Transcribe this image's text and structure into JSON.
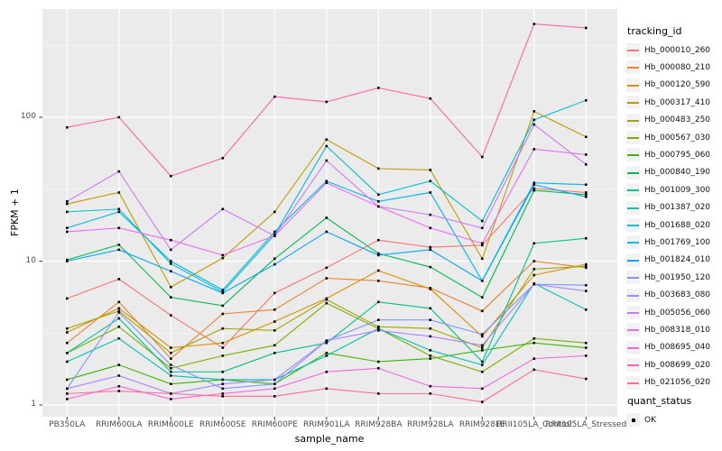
{
  "figure": {
    "background": "#FFFFFF",
    "panel_background": "#EBEBEB",
    "grid_color": "#FFFFFF",
    "point_color": "#000000"
  },
  "axes": {
    "x": {
      "title": "sample_name"
    },
    "y": {
      "title": "FPKM + 1",
      "tick_labels": [
        "1",
        "10",
        "100"
      ],
      "tick_values": [
        1,
        10,
        100
      ],
      "minor_tick_values": [
        3.1623,
        31.623,
        316.23
      ],
      "scale": "log10"
    }
  },
  "legend": {
    "tracking_title": "tracking_id",
    "quant_title": "quant_status",
    "quant_items": [
      {
        "label": "OK",
        "marker": "black-square"
      }
    ]
  },
  "chart_data": {
    "type": "line",
    "title": "",
    "xlabel": "sample_name",
    "ylabel": "FPKM + 1",
    "y_scale": "log10",
    "ylim": [
      0.83,
      565
    ],
    "grid": true,
    "legend_position": "right",
    "point_marker": "black-square",
    "x_categories": [
      "PB350LA",
      "RRIM600LA",
      "RRIM600LE",
      "RRIM600SE",
      "RRIM600PE",
      "RRIM901LA",
      "RRIM928BA",
      "RRIM928LA",
      "RRIM928LE",
      "RRII105LA_Control",
      "RRII105LA_Stressed"
    ],
    "series": [
      {
        "name": "Hb_000010_260",
        "color": "#F8766D",
        "values": [
          5.5,
          7.5,
          4.2,
          2.5,
          6.0,
          9.0,
          14.0,
          12.5,
          12.9,
          32,
          30
        ]
      },
      {
        "name": "Hb_000080_210",
        "color": "#EA8331",
        "values": [
          2.7,
          5.2,
          2.1,
          4.3,
          4.6,
          7.6,
          7.3,
          6.5,
          4.5,
          10,
          9.0
        ]
      },
      {
        "name": "Hb_000120_590",
        "color": "#D89000",
        "values": [
          3.2,
          4.7,
          2.5,
          2.7,
          3.8,
          5.5,
          8.6,
          6.4,
          3.0,
          8.0,
          9.5
        ]
      },
      {
        "name": "Hb_000317_410",
        "color": "#C09B00",
        "values": [
          25,
          30,
          6.6,
          10.5,
          22,
          70,
          44,
          43,
          10.4,
          110,
          73
        ]
      },
      {
        "name": "Hb_000483_250",
        "color": "#A3A500",
        "values": [
          3.4,
          4.5,
          2.3,
          3.4,
          3.3,
          5.4,
          3.5,
          3.4,
          2.5,
          8.8,
          9.2
        ]
      },
      {
        "name": "Hb_000567_030",
        "color": "#7CAE00",
        "values": [
          2.3,
          3.5,
          1.8,
          2.2,
          2.6,
          5.1,
          3.4,
          2.2,
          1.7,
          2.9,
          2.7
        ]
      },
      {
        "name": "Hb_000795_060",
        "color": "#39B600",
        "values": [
          1.5,
          1.9,
          1.4,
          1.5,
          1.4,
          2.3,
          2.0,
          2.1,
          2.4,
          2.7,
          2.5
        ]
      },
      {
        "name": "Hb_000840_190",
        "color": "#00BB4E",
        "values": [
          10.2,
          13,
          5.6,
          4.9,
          10.4,
          20,
          11.3,
          9.1,
          5.6,
          31,
          29
        ]
      },
      {
        "name": "Hb_001009_300",
        "color": "#00C08D",
        "values": [
          2.3,
          4.0,
          1.7,
          1.7,
          2.3,
          2.7,
          5.2,
          4.7,
          2.0,
          13.3,
          14.4
        ]
      },
      {
        "name": "Hb_001387_020",
        "color": "#00C0B4",
        "values": [
          2.0,
          2.9,
          1.6,
          1.5,
          1.5,
          2.2,
          3.4,
          2.4,
          1.9,
          7.0,
          4.6
        ]
      },
      {
        "name": "Hb_001688_020",
        "color": "#00BDD2",
        "values": [
          22,
          23,
          9.6,
          6.1,
          15.3,
          63,
          29,
          36,
          19,
          96,
          131
        ]
      },
      {
        "name": "Hb_001769_100",
        "color": "#00B5EC",
        "values": [
          17,
          22,
          10,
          6.3,
          16,
          36,
          26,
          30,
          7.3,
          35,
          34
        ]
      },
      {
        "name": "Hb_001824_010",
        "color": "#00A5FF",
        "values": [
          10,
          12,
          8.5,
          6.0,
          9.5,
          16,
          11,
          12,
          7.3,
          34,
          28
        ]
      },
      {
        "name": "Hb_001950_120",
        "color": "#7C96FF",
        "values": [
          1.3,
          4.4,
          1.9,
          1.3,
          1.4,
          2.8,
          3.9,
          3.9,
          3.1,
          6.9,
          6.8
        ]
      },
      {
        "name": "Hb_003683_080",
        "color": "#A983FF",
        "values": [
          1.3,
          1.6,
          1.2,
          1.4,
          1.5,
          2.8,
          3.3,
          3.0,
          2.6,
          6.9,
          6.2
        ]
      },
      {
        "name": "Hb_005056_060",
        "color": "#CC77FF",
        "values": [
          26,
          42,
          12,
          23,
          15,
          50,
          24,
          21,
          17,
          89,
          47
        ]
      },
      {
        "name": "Hb_008318_010",
        "color": "#E86DF6",
        "values": [
          16,
          17,
          14,
          11,
          15,
          35,
          24,
          17,
          13.3,
          60,
          55
        ]
      },
      {
        "name": "Hb_008695_040",
        "color": "#F763E0",
        "values": [
          1.1,
          1.35,
          1.1,
          1.2,
          1.3,
          1.7,
          1.8,
          1.35,
          1.3,
          2.1,
          2.2
        ]
      },
      {
        "name": "Hb_008699_020",
        "color": "#FF62A8",
        "values": [
          85,
          100,
          39,
          52,
          139,
          128,
          160,
          135,
          53,
          445,
          418
        ]
      },
      {
        "name": "Hb_021056_020",
        "color": "#FF6C91",
        "values": [
          1.2,
          1.25,
          1.2,
          1.15,
          1.15,
          1.3,
          1.2,
          1.2,
          1.05,
          1.76,
          1.52
        ]
      }
    ]
  }
}
